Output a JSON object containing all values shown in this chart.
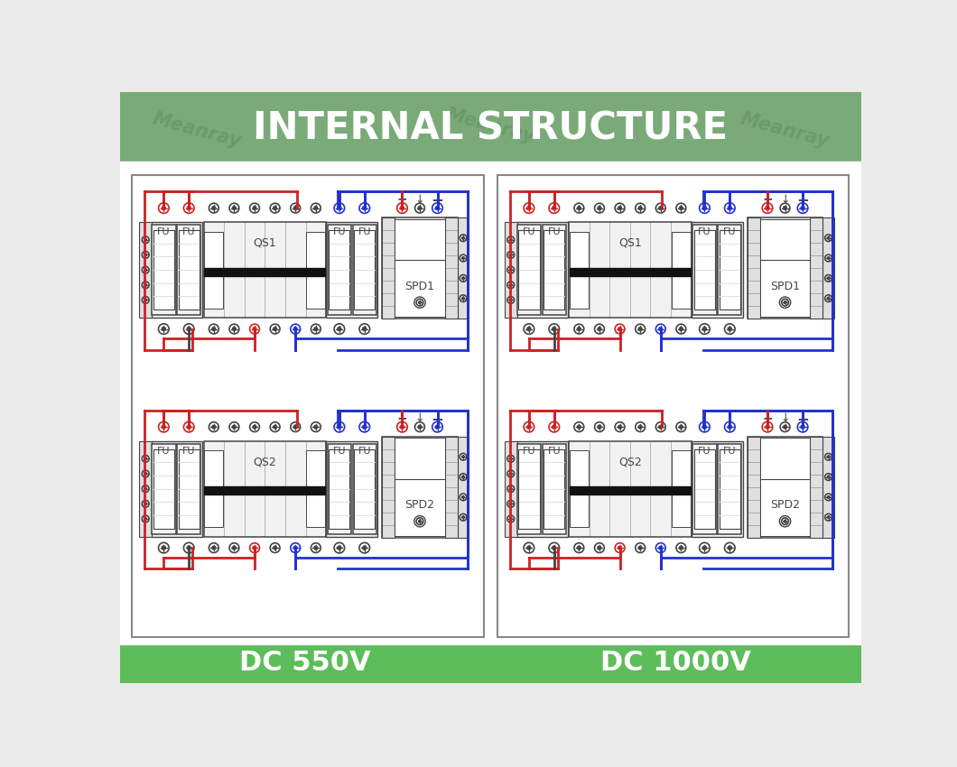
{
  "title": "INTERNAL STRUCTURE",
  "header_bg": "#7aaa78",
  "footer_bg": "#5dbd5a",
  "main_bg": "#ebebeb",
  "title_color": "#ffffff",
  "title_fontsize": 30,
  "watermark_text": "Meanray",
  "watermark_color": "#6a9a68",
  "label_left": "DC 550V",
  "label_right": "DC 1000V",
  "label_fontsize": 22,
  "label_color": "#ffffff",
  "red_color": "#cc2222",
  "blue_color": "#2233cc",
  "line_color": "#444444",
  "white": "#ffffff",
  "light_gray": "#f2f2f2",
  "med_gray": "#e0e0e0",
  "dark_gray": "#888888"
}
